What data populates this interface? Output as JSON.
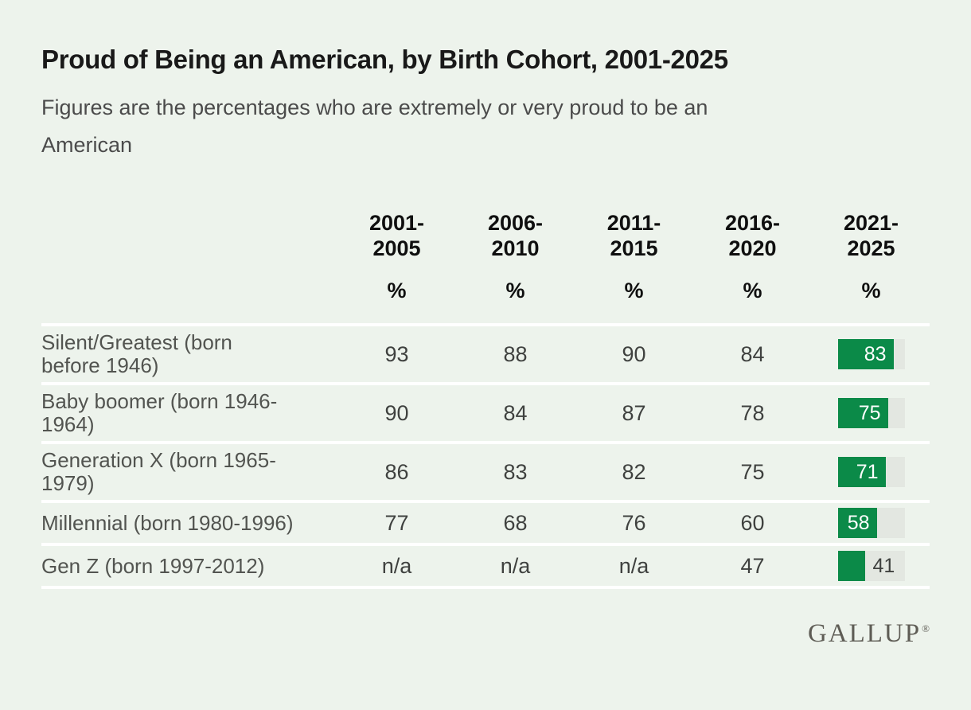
{
  "header": {
    "title": "Proud of Being an American, by Birth Cohort, 2001-2025",
    "subtitle_lines": [
      "Figures are the percentages who are extremely or very proud to be an",
      "American"
    ]
  },
  "table": {
    "columns": [
      "2001-2005",
      "2006-2010",
      "2011-2015",
      "2016-2020",
      "2021-2025"
    ],
    "unit_symbol": "%",
    "rows": [
      {
        "label": "Silent/Greatest (born before 1946)",
        "values": [
          "93",
          "88",
          "90",
          "84"
        ],
        "bar_value": 83
      },
      {
        "label": "Baby boomer (born 1946-1964)",
        "values": [
          "90",
          "84",
          "87",
          "78"
        ],
        "bar_value": 75
      },
      {
        "label": "Generation X (born 1965-1979)",
        "values": [
          "86",
          "83",
          "82",
          "75"
        ],
        "bar_value": 71
      },
      {
        "label": "Millennial (born 1980-1996)",
        "values": [
          "77",
          "68",
          "76",
          "60"
        ],
        "bar_value": 58
      },
      {
        "label": "Gen Z (born 1997-2012)",
        "values": [
          "n/a",
          "n/a",
          "n/a",
          "47"
        ],
        "bar_value": 41
      }
    ]
  },
  "footer": {
    "logo_text": "GALLUP",
    "registered_mark": "®"
  },
  "colors": {
    "background": "#edf3ec",
    "accent_green": "#0b8a48",
    "bar_track": "#e3e7e1",
    "row_separator": "#ffffff"
  },
  "chart_data": {
    "type": "table",
    "title": "Proud of Being an American, by Birth Cohort, 2001-2025",
    "subtitle": "Figures are the percentages who are extremely or very proud to be an American",
    "categories": [
      "2001-2005",
      "2006-2010",
      "2011-2015",
      "2016-2020",
      "2021-2025"
    ],
    "unit": "%",
    "series": [
      {
        "name": "Silent/Greatest (born before 1946)",
        "values": [
          93,
          88,
          90,
          84,
          83
        ]
      },
      {
        "name": "Baby boomer (born 1946-1964)",
        "values": [
          90,
          84,
          87,
          78,
          75
        ]
      },
      {
        "name": "Generation X (born 1965-1979)",
        "values": [
          86,
          83,
          82,
          75,
          71
        ]
      },
      {
        "name": "Millennial (born 1980-1996)",
        "values": [
          77,
          68,
          76,
          60,
          58
        ]
      },
      {
        "name": "Gen Z (born 1997-2012)",
        "values": [
          null,
          null,
          null,
          47,
          41
        ]
      }
    ],
    "na_label": "n/a",
    "last_column_rendering": {
      "style": "bar",
      "range": [
        0,
        100
      ],
      "fill_color": "#0b8a48",
      "track_color": "#e3e7e1"
    }
  }
}
